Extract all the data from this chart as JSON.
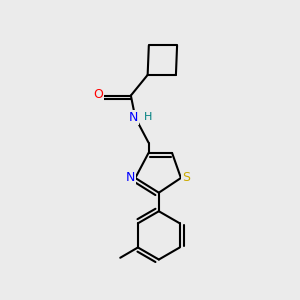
{
  "background_color": "#ebebeb",
  "bond_color": "#000000",
  "bond_width": 1.5,
  "O_color": "#ff0000",
  "N_color": "#0000ff",
  "S_color": "#ccaa00",
  "H_color": "#008080",
  "figsize": [
    3.0,
    3.0
  ],
  "dpi": 100,
  "xlim": [
    0,
    10
  ],
  "ylim": [
    0,
    10
  ]
}
